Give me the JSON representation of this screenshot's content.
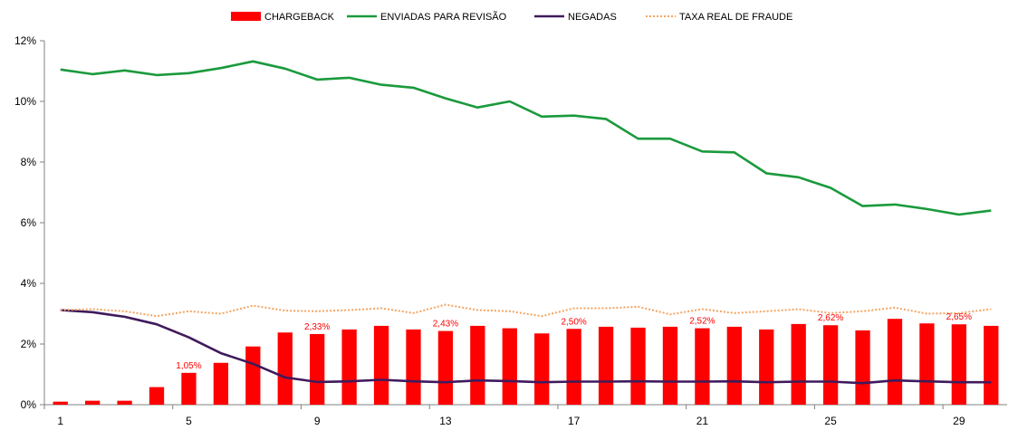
{
  "chart_data": {
    "type": "bar",
    "x": [
      1,
      2,
      3,
      4,
      5,
      6,
      7,
      8,
      9,
      10,
      11,
      12,
      13,
      14,
      15,
      16,
      17,
      18,
      19,
      20,
      21,
      22,
      23,
      24,
      25,
      26,
      27,
      28,
      29,
      30
    ],
    "x_tick_labels": [
      "1",
      "5",
      "9",
      "13",
      "17",
      "21",
      "25",
      "29"
    ],
    "x_tick_values": [
      1,
      5,
      9,
      13,
      17,
      21,
      25,
      29
    ],
    "y_tick_labels": [
      "0%",
      "2%",
      "4%",
      "6%",
      "8%",
      "10%",
      "12%"
    ],
    "y_tick_values": [
      0,
      2,
      4,
      6,
      8,
      10,
      12
    ],
    "ylim": [
      0,
      12
    ],
    "legend_position": "top",
    "grid": false,
    "series": [
      {
        "name": "CHARGEBACK",
        "kind": "bar",
        "color": "#ff0000",
        "values": [
          0.1,
          0.13,
          0.13,
          0.58,
          1.05,
          1.38,
          1.92,
          2.38,
          2.33,
          2.48,
          2.6,
          2.48,
          2.43,
          2.6,
          2.52,
          2.35,
          2.5,
          2.57,
          2.54,
          2.57,
          2.52,
          2.57,
          2.48,
          2.66,
          2.62,
          2.45,
          2.83,
          2.68,
          2.65,
          2.6
        ]
      },
      {
        "name": "ENVIADAS PARA REVISÃO",
        "kind": "line",
        "color": "#1a9a3c",
        "values": [
          11.05,
          10.9,
          11.02,
          10.87,
          10.93,
          11.1,
          11.32,
          11.08,
          10.72,
          10.78,
          10.55,
          10.45,
          10.1,
          9.8,
          10.0,
          9.5,
          9.53,
          9.42,
          8.77,
          8.77,
          8.35,
          8.32,
          7.63,
          7.5,
          7.15,
          6.55,
          6.6,
          6.45,
          6.27,
          6.4
        ]
      },
      {
        "name": "NEGADAS",
        "kind": "line",
        "color": "#3f1a5c",
        "values": [
          3.12,
          3.05,
          2.9,
          2.65,
          2.22,
          1.7,
          1.35,
          0.9,
          0.75,
          0.77,
          0.82,
          0.77,
          0.74,
          0.8,
          0.78,
          0.74,
          0.76,
          0.76,
          0.77,
          0.76,
          0.76,
          0.77,
          0.74,
          0.76,
          0.76,
          0.71,
          0.8,
          0.77,
          0.74,
          0.74
        ]
      },
      {
        "name": "TAXA REAL DE FRAUDE",
        "kind": "dotted-line",
        "color": "#f4a460",
        "values": [
          3.12,
          3.15,
          3.08,
          2.92,
          3.08,
          3.0,
          3.27,
          3.1,
          3.08,
          3.12,
          3.18,
          3.02,
          3.3,
          3.12,
          3.08,
          2.92,
          3.18,
          3.18,
          3.23,
          2.98,
          3.15,
          3.02,
          3.08,
          3.15,
          3.02,
          3.08,
          3.2,
          3.0,
          3.02,
          3.15
        ]
      }
    ],
    "annotations": [
      {
        "x": 5,
        "text": "1,05%"
      },
      {
        "x": 9,
        "text": "2,33%"
      },
      {
        "x": 13,
        "text": "2,43%"
      },
      {
        "x": 17,
        "text": "2,50%"
      },
      {
        "x": 21,
        "text": "2,52%"
      },
      {
        "x": 25,
        "text": "2,62%"
      },
      {
        "x": 29,
        "text": "2,65%"
      }
    ],
    "annotation_color": "#ff0000"
  }
}
